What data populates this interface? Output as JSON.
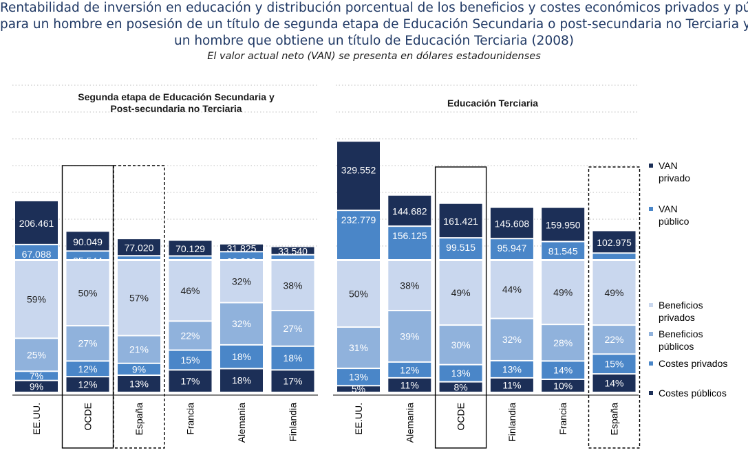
{
  "header": {
    "title_lines": [
      "Rentabilidad de inversión en educación y distribución porcentual de los beneficios y costes económicos privados y públcos",
      "para un hombre en posesión de un título de segunda etapa de Educación Secundaria o post-secundaria no Terciaria y para",
      "un hombre que obtiene un título de Educación Terciaria (2008)"
    ],
    "subtitle": "El valor actual neto (VAN) se presenta en dólares estadounidenses"
  },
  "colors": {
    "van_privado": "#1c2f57",
    "van_publico": "#4a86c8",
    "beneficios_privados": "#c9d7ee",
    "beneficios_publicos": "#90b2dc",
    "costes_privados": "#4a86c8",
    "costes_publicos": "#1c2f57"
  },
  "chart_data": [
    {
      "type": "bar",
      "title": "Segunda etapa de Educación Secundaria y Post-secundaria no Terciaria",
      "title_lines": [
        "Segunda etapa de Educación Secundaria y",
        "Post-secundaria no Terciaria"
      ],
      "categories": [
        "EE.UU.",
        "OCDE",
        "España",
        "Francia",
        "Alemania",
        "Finlandia"
      ],
      "highlighted": {
        "OCDE": "solid",
        "España": "dashed"
      },
      "van_series": [
        {
          "name": "VAN privado",
          "values": [
            206461,
            90049,
            77020,
            70129,
            31825,
            33540
          ],
          "labels": [
            "206.461",
            "90.049",
            "77.020",
            "70.129",
            "31.825",
            "33.540"
          ]
        },
        {
          "name": "VAN público",
          "values": [
            67088,
            35544,
            12537,
            11671,
            32303,
            17553
          ],
          "labels": [
            "67.088",
            "35.544",
            "12.537",
            "11.671",
            "32.303",
            "17.553"
          ]
        }
      ],
      "distribution_series": [
        {
          "name": "Costes públicos",
          "values": [
            9,
            12,
            13,
            17,
            18,
            17
          ]
        },
        {
          "name": "Costes privados",
          "values": [
            7,
            12,
            9,
            15,
            18,
            18
          ]
        },
        {
          "name": "Beneficios públicos",
          "values": [
            25,
            27,
            21,
            22,
            32,
            27
          ]
        },
        {
          "name": "Beneficios privados",
          "values": [
            59,
            50,
            57,
            46,
            32,
            38
          ]
        }
      ]
    },
    {
      "type": "bar",
      "title": "Educación Terciaria",
      "title_lines": [
        "Educación Terciaria"
      ],
      "categories": [
        "EE.UU.",
        "Alemania",
        "OCDE",
        "Finlandia",
        "Francia",
        "España"
      ],
      "highlighted": {
        "OCDE": "solid",
        "España": "dashed"
      },
      "van_series": [
        {
          "name": "VAN privado",
          "values": [
            329552,
            144682,
            161421,
            145608,
            159950,
            102975
          ],
          "labels": [
            "329.552",
            "144.682",
            "161.421",
            "145.608",
            "159.950",
            "102.975"
          ]
        },
        {
          "name": "VAN público",
          "values": [
            232779,
            156125,
            99515,
            95947,
            81545,
            25591
          ],
          "labels": [
            "232.779",
            "156.125",
            "99.515",
            "95.947",
            "81.545",
            "25.591"
          ]
        }
      ],
      "distribution_series": [
        {
          "name": "Costes públicos",
          "values": [
            5,
            11,
            8,
            11,
            10,
            14
          ]
        },
        {
          "name": "Costes privados",
          "values": [
            13,
            12,
            13,
            13,
            14,
            15
          ]
        },
        {
          "name": "Beneficios públicos",
          "values": [
            31,
            39,
            30,
            32,
            28,
            22
          ]
        },
        {
          "name": "Beneficios privados",
          "values": [
            50,
            38,
            49,
            44,
            49,
            49
          ]
        }
      ]
    }
  ],
  "legend": {
    "items": [
      {
        "key": "van_privado",
        "lines": [
          "VAN",
          "privado"
        ]
      },
      {
        "key": "van_publico",
        "lines": [
          "VAN",
          "público"
        ]
      },
      {
        "key": "beneficios_privados",
        "lines": [
          "Beneficios",
          "privados"
        ]
      },
      {
        "key": "beneficios_publicos",
        "lines": [
          "Beneficios",
          "públicos"
        ]
      },
      {
        "key": "costes_privados",
        "lines": [
          "Costes privados"
        ]
      },
      {
        "key": "costes_publicos",
        "lines": [
          "Costes públicos"
        ]
      }
    ]
  }
}
